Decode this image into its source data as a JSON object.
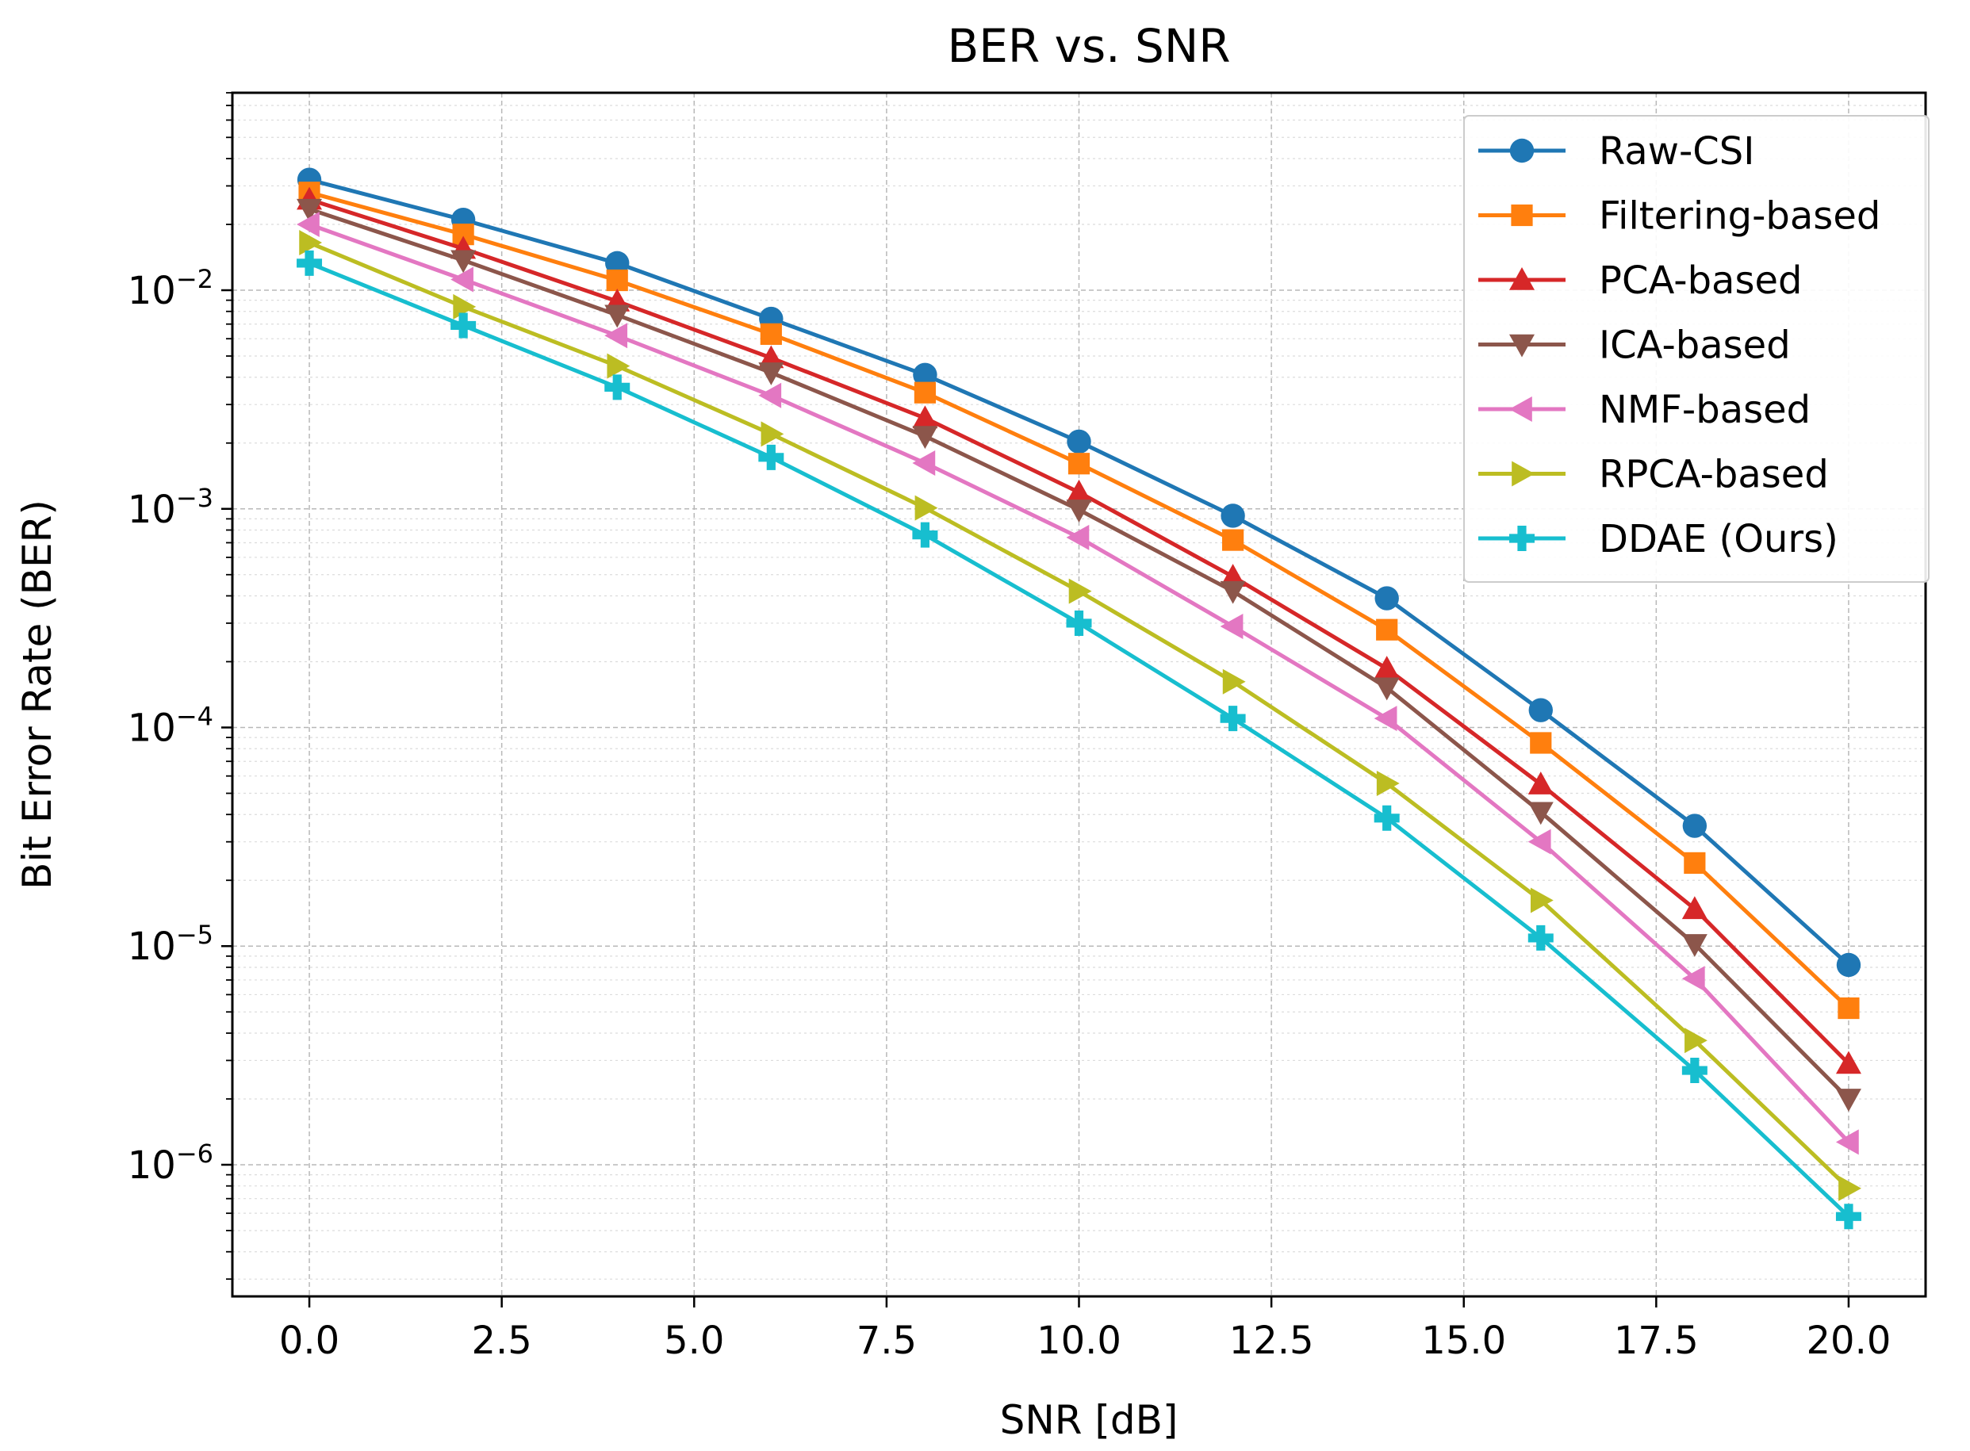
{
  "chart_data": {
    "type": "line",
    "title": "BER vs. SNR",
    "xlabel": "SNR [dB]",
    "ylabel": "Bit Error Rate (BER)",
    "y_scale": "log",
    "xlim": [
      -1,
      21
    ],
    "ylim": [
      2.5e-07,
      0.08
    ],
    "grid": true,
    "legend_position": "top-right",
    "x_ticks": [
      {
        "value": 0,
        "label": "0.0"
      },
      {
        "value": 2.5,
        "label": "2.5"
      },
      {
        "value": 5,
        "label": "5.0"
      },
      {
        "value": 7.5,
        "label": "7.5"
      },
      {
        "value": 10,
        "label": "10.0"
      },
      {
        "value": 12.5,
        "label": "12.5"
      },
      {
        "value": 15,
        "label": "15.0"
      },
      {
        "value": 17.5,
        "label": "17.5"
      },
      {
        "value": 20,
        "label": "20.0"
      }
    ],
    "y_ticks": [
      {
        "value": 0.01,
        "base": "10",
        "exp": "−2"
      },
      {
        "value": 0.001,
        "base": "10",
        "exp": "−3"
      },
      {
        "value": 0.0001,
        "base": "10",
        "exp": "−4"
      },
      {
        "value": 1e-05,
        "base": "10",
        "exp": "−5"
      },
      {
        "value": 1e-06,
        "base": "10",
        "exp": "−6"
      }
    ],
    "x": [
      0,
      2,
      4,
      6,
      8,
      10,
      12,
      14,
      16,
      18,
      20
    ],
    "series": [
      {
        "name": "Raw-CSI",
        "color": "#1f77b4",
        "marker": "circle",
        "values": [
          0.032,
          0.021,
          0.0133,
          0.0074,
          0.0041,
          0.00203,
          0.00093,
          0.00039,
          0.00012,
          3.55e-05,
          8.2e-06
        ]
      },
      {
        "name": "Filtering-based",
        "color": "#ff7f0e",
        "marker": "square",
        "values": [
          0.028,
          0.018,
          0.0111,
          0.0063,
          0.0034,
          0.00161,
          0.00072,
          0.00028,
          8.5e-05,
          2.4e-05,
          5.2e-06
        ]
      },
      {
        "name": "PCA-based",
        "color": "#d62728",
        "marker": "triangle-up",
        "values": [
          0.026,
          0.0155,
          0.0089,
          0.0049,
          0.0026,
          0.00119,
          0.00049,
          0.000186,
          5.5e-05,
          1.48e-05,
          2.9e-06
        ]
      },
      {
        "name": "ICA-based",
        "color": "#8c564b",
        "marker": "triangle-down",
        "values": [
          0.0235,
          0.0137,
          0.0077,
          0.0042,
          0.00215,
          0.00099,
          0.00042,
          0.000152,
          4.1e-05,
          1.02e-05,
          2e-06
        ]
      },
      {
        "name": "NMF-based",
        "color": "#e377c2",
        "marker": "triangle-left",
        "values": [
          0.02,
          0.0112,
          0.0062,
          0.0033,
          0.00162,
          0.00074,
          0.00029,
          0.00011,
          3e-05,
          7.1e-06,
          1.27e-06
        ]
      },
      {
        "name": "RPCA-based",
        "color": "#bcbd22",
        "marker": "triangle-right",
        "values": [
          0.0165,
          0.0084,
          0.0045,
          0.0022,
          0.00101,
          0.00042,
          0.000162,
          5.55e-05,
          1.62e-05,
          3.7e-06,
          7.8e-07
        ]
      },
      {
        "name": "DDAE (Ours)",
        "color": "#17becf",
        "marker": "plus-filled",
        "values": [
          0.0133,
          0.0069,
          0.0036,
          0.00172,
          0.00076,
          0.0003,
          0.00011,
          3.85e-05,
          1.09e-05,
          2.7e-06,
          5.8e-07
        ]
      }
    ]
  }
}
